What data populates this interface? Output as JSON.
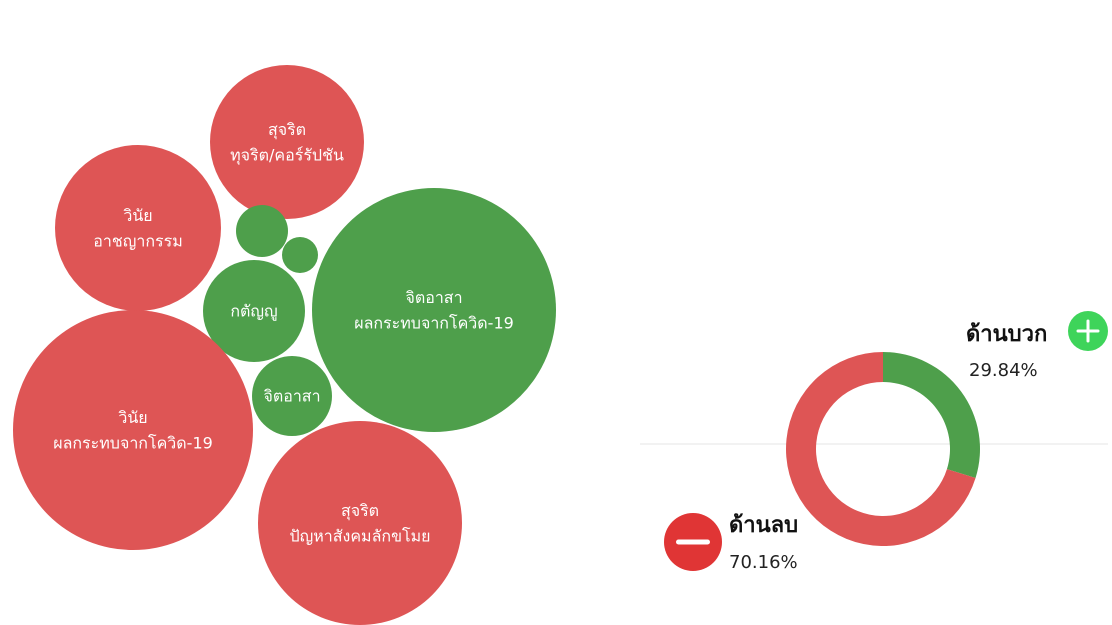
{
  "colors": {
    "negative": "#de5555",
    "positive": "#4e9f4b",
    "plus_icon": "#3ed45a",
    "minus_icon": "#e03535",
    "divider": "#eeeeee"
  },
  "chart_data": [
    {
      "type": "bubble",
      "title": "",
      "bubbles": [
        {
          "label_lines": [
            "สุจริต",
            "ทุจริต/คอร์รัปชัน"
          ],
          "sentiment": "negative"
        },
        {
          "label_lines": [
            "วินัย",
            "อาชญากรรม"
          ],
          "sentiment": "negative"
        },
        {
          "label_lines": [],
          "sentiment": "positive"
        },
        {
          "label_lines": [],
          "sentiment": "positive"
        },
        {
          "label_lines": [
            "กตัญญู"
          ],
          "sentiment": "positive"
        },
        {
          "label_lines": [
            "จิตอาสา",
            "ผลกระทบจากโควิด-19"
          ],
          "sentiment": "positive"
        },
        {
          "label_lines": [
            "วินัย",
            "ผลกระทบจากโควิด-19"
          ],
          "sentiment": "negative"
        },
        {
          "label_lines": [
            "จิตอาสา"
          ],
          "sentiment": "positive"
        },
        {
          "label_lines": [
            "สุจริต",
            "ปัญหาสังคมลักขโมย"
          ],
          "sentiment": "negative"
        }
      ]
    },
    {
      "type": "pie",
      "variant": "donut",
      "slices": [
        {
          "name": "ด้านบวก",
          "value": 29.84,
          "label": "29.84%",
          "sentiment": "positive"
        },
        {
          "name": "ด้านลบ",
          "value": 70.16,
          "label": "70.16%",
          "sentiment": "negative"
        }
      ]
    }
  ]
}
